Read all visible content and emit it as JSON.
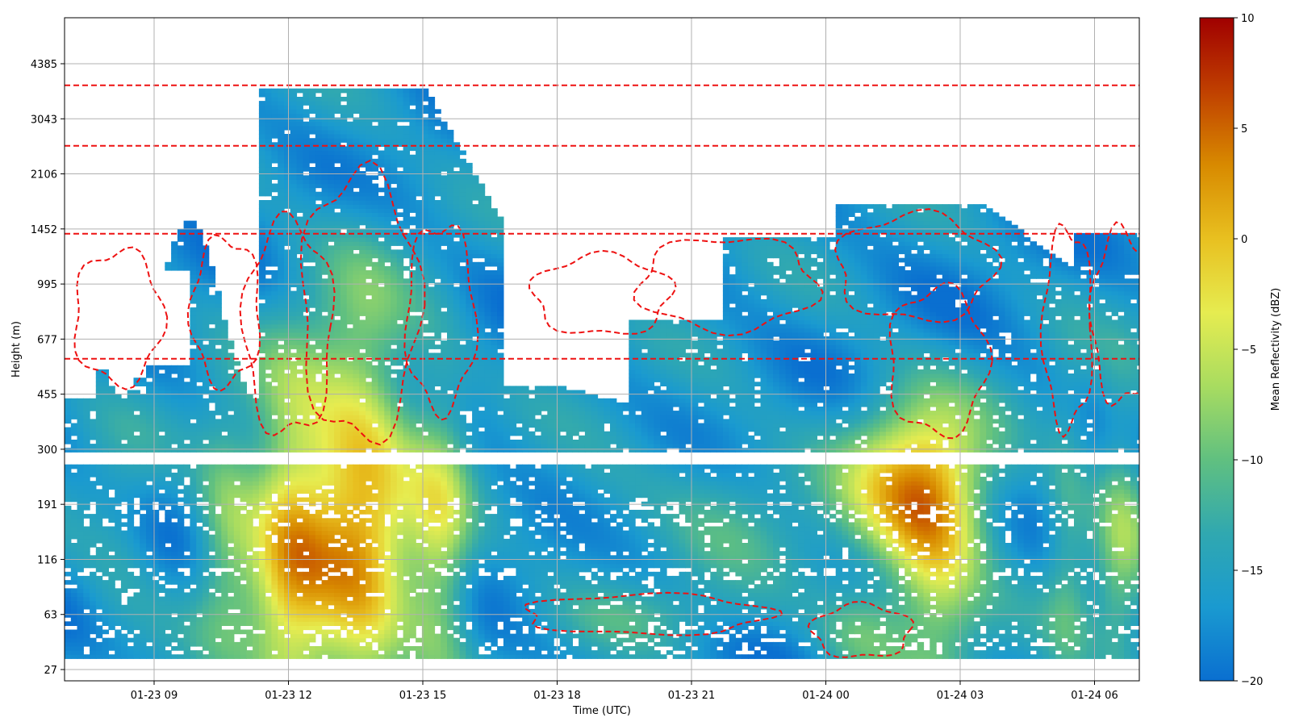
{
  "chart_data": {
    "type": "heatmap",
    "xlabel": "Time (UTC)",
    "ylabel": "Height (m)",
    "x_ticks": [
      "01-23 09",
      "01-23 12",
      "01-23 15",
      "01-23 18",
      "01-23 21",
      "01-24 00",
      "01-24 03",
      "01-24 06"
    ],
    "x_tick_hours": [
      9,
      12,
      15,
      18,
      21,
      24,
      27,
      30
    ],
    "xlim_hours": [
      7.0,
      31.0
    ],
    "y_ticks": [
      "27",
      "63",
      "116",
      "191",
      "300",
      "455",
      "677",
      "995",
      "1452",
      "2106",
      "3043",
      "4385"
    ],
    "y_scale": "indexed",
    "colorbar": {
      "label": "Mean Reflectivity (dBZ)",
      "ticks": [
        "10",
        "5",
        "0",
        "−5",
        "−10",
        "−15",
        "−20"
      ],
      "range": [
        -20,
        10
      ],
      "colormap": [
        "#0a6fd0",
        "#1a9ad0",
        "#30a8b0",
        "#60c080",
        "#a8dc60",
        "#e6ec50",
        "#e8c020",
        "#d88a00",
        "#c04000",
        "#a00000"
      ]
    },
    "contour": {
      "style": "dashed",
      "color": "#ee1111"
    },
    "grid": true,
    "blobs": [
      {
        "t": 12.0,
        "h": 2.2,
        "w": 0.9,
        "hh": 3.2,
        "v": 15
      },
      {
        "t": 13.6,
        "h": 2.6,
        "w": 1.2,
        "hh": 4.0,
        "v": 18
      },
      {
        "t": 15.4,
        "h": 2.4,
        "w": 0.7,
        "hh": 2.8,
        "v": 10
      },
      {
        "t": 10.6,
        "h": 2.5,
        "w": 0.7,
        "hh": 2.2,
        "v": 8
      },
      {
        "t": 8.2,
        "h": 2.4,
        "w": 0.9,
        "hh": 2.0,
        "v": 3
      },
      {
        "t": 26.0,
        "h": 3.3,
        "w": 1.6,
        "hh": 1.6,
        "v": 17
      },
      {
        "t": 26.5,
        "h": 1.6,
        "w": 1.0,
        "hh": 2.2,
        "v": 9
      },
      {
        "t": 30.6,
        "h": 2.4,
        "w": 0.6,
        "hh": 2.6,
        "v": 8
      },
      {
        "t": 29.4,
        "h": 2.2,
        "w": 0.5,
        "hh": 3.0,
        "v": 5
      },
      {
        "t": 21.8,
        "h": 3.0,
        "w": 1.8,
        "hh": 1.4,
        "v": 4
      },
      {
        "t": 19.0,
        "h": 2.8,
        "w": 1.4,
        "hh": 1.2,
        "v": 2
      },
      {
        "t": 24.8,
        "h": 0.7,
        "w": 1.0,
        "hh": 0.8,
        "v": 6
      },
      {
        "t": 20.0,
        "h": 1.0,
        "w": 2.5,
        "hh": 0.6,
        "v": 3
      }
    ]
  }
}
